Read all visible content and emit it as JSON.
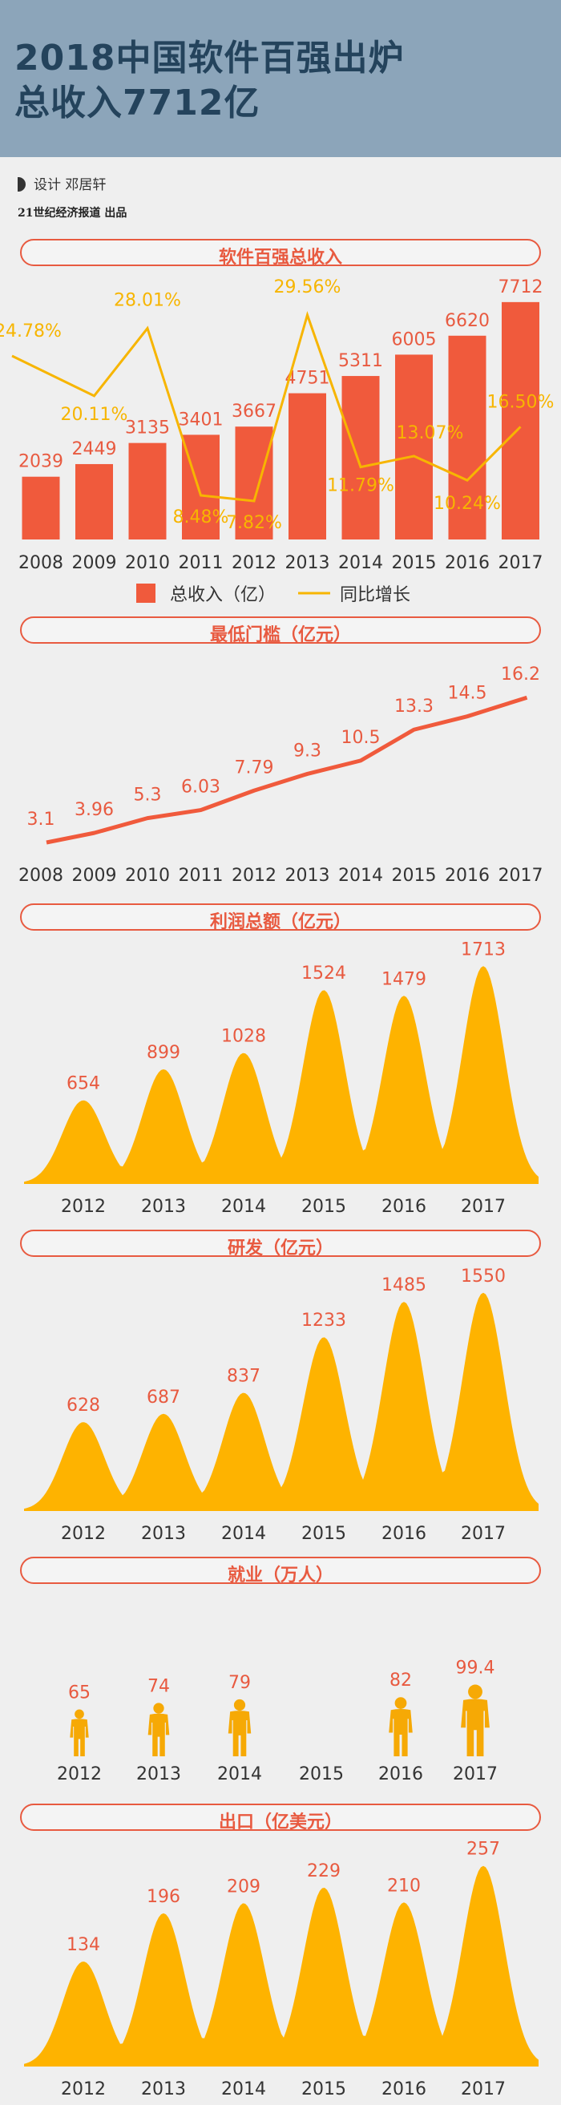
{
  "header": {
    "title_line1": "2018中国软件百强出炉",
    "title_line2": "总收入7712亿"
  },
  "credit": {
    "designer": "设计  邓居轩",
    "publisher": "21世纪经济报道  出品"
  },
  "colors": {
    "bar": "#f05a3c",
    "line": "#f7b500",
    "mountain": "#feb300",
    "person": "#f6a905",
    "label_red": "#e85a40",
    "header_bg": "#8ca5ba"
  },
  "sections": {
    "revenue": "软件百强总收入",
    "threshold": "最低门槛（亿元）",
    "profit": "利润总额（亿元）",
    "rnd": "研发（亿元）",
    "employment": "就业（万人）",
    "export": "出口（亿美元）"
  },
  "chart_data": [
    {
      "id": "revenue",
      "type": "bar",
      "categories": [
        "2008",
        "2009",
        "2010",
        "2011",
        "2012",
        "2013",
        "2014",
        "2015",
        "2016",
        "2017"
      ],
      "series": [
        {
          "name": "总收入（亿）",
          "type": "bar",
          "values": [
            2039,
            2449,
            3135,
            3401,
            3667,
            4751,
            5311,
            6005,
            6620,
            7712
          ]
        },
        {
          "name": "同比增长",
          "type": "line",
          "values": [
            24.78,
            20.11,
            28.01,
            8.48,
            7.82,
            29.56,
            11.79,
            13.07,
            10.24,
            16.5
          ],
          "labels": [
            "24.78%",
            "20.11%",
            "28.01%",
            "8.48%",
            "7.82%",
            "29.56%",
            "11.79%",
            "13.07%",
            "10.24%",
            "16.50%"
          ]
        }
      ],
      "legend_placement": "bottom"
    },
    {
      "id": "threshold",
      "type": "line",
      "categories": [
        "2008",
        "2009",
        "2010",
        "2011",
        "2012",
        "2013",
        "2014",
        "2015",
        "2016",
        "2017"
      ],
      "values": [
        3.1,
        3.96,
        5.3,
        6.03,
        7.79,
        9.3,
        10.5,
        13.3,
        14.5,
        16.2
      ]
    },
    {
      "id": "profit",
      "type": "area",
      "categories": [
        "2012",
        "2013",
        "2014",
        "2015",
        "2016",
        "2017"
      ],
      "values": [
        654,
        899,
        1028,
        1524,
        1479,
        1713
      ]
    },
    {
      "id": "rnd",
      "type": "area",
      "categories": [
        "2012",
        "2013",
        "2014",
        "2015",
        "2016",
        "2017"
      ],
      "values": [
        628,
        687,
        837,
        1233,
        1485,
        1550
      ]
    },
    {
      "id": "employment",
      "type": "bar",
      "categories": [
        "2012",
        "2013",
        "2014",
        "2015",
        "2016",
        "2017"
      ],
      "values": [
        65,
        74,
        79,
        null,
        82,
        99.4
      ],
      "labels": [
        "65",
        "74",
        "79",
        "",
        "82",
        "99.4"
      ]
    },
    {
      "id": "export",
      "type": "area",
      "categories": [
        "2012",
        "2013",
        "2014",
        "2015",
        "2016",
        "2017"
      ],
      "values": [
        134,
        196,
        209,
        229,
        210,
        257
      ]
    }
  ]
}
